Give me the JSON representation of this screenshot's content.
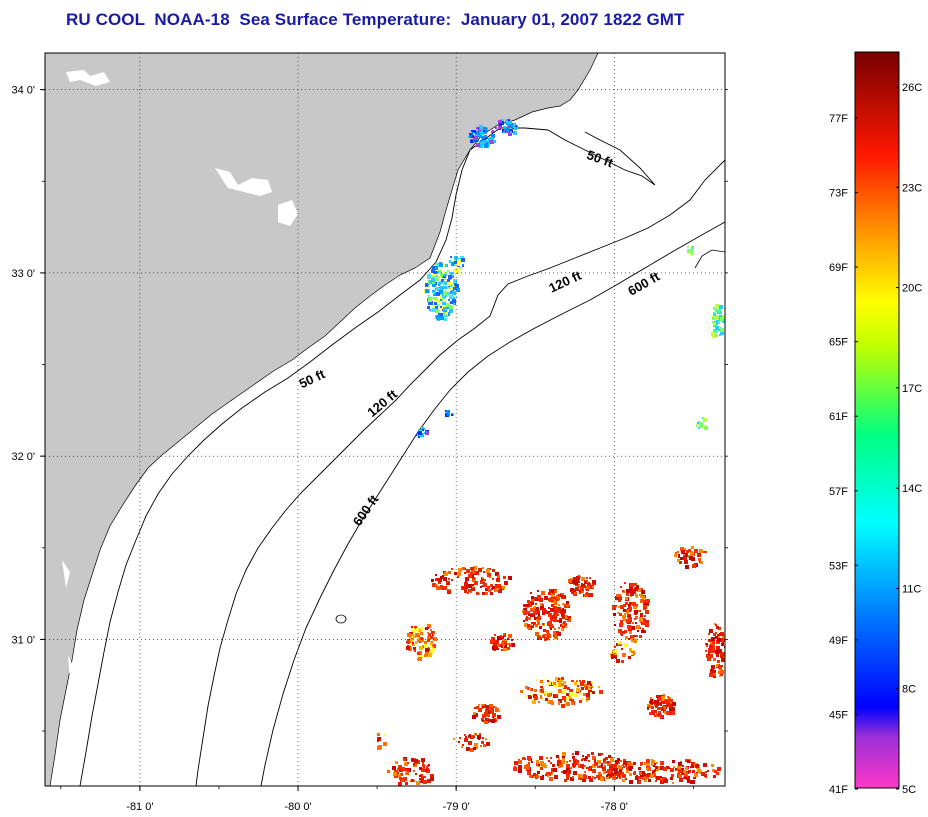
{
  "title": "RU COOL  NOAA-18  Sea Surface Temperature:  January 01, 2007 1822 GMT",
  "colors": {
    "land": "#c8c8c8",
    "water": "#ffffff",
    "title": "#1a1aa8"
  },
  "map": {
    "lon_range": [
      -81.6,
      -77.3
    ],
    "lat_range": [
      30.2,
      34.2
    ],
    "lon_ticks": [
      {
        "value": -81,
        "label": "-81 0'"
      },
      {
        "value": -80,
        "label": "-80 0'"
      },
      {
        "value": -79,
        "label": "-79 0'"
      },
      {
        "value": -78,
        "label": "-78 0'"
      }
    ],
    "lat_ticks": [
      {
        "value": 34,
        "label": "34 0'"
      },
      {
        "value": 33,
        "label": "33 0'"
      },
      {
        "value": 32,
        "label": "32 0'"
      },
      {
        "value": 31,
        "label": "31 0'"
      }
    ],
    "contour_labels": [
      {
        "text": "50 ft",
        "lon": -78.1,
        "lat": 33.6,
        "angle": 20
      },
      {
        "text": "120 ft",
        "lon": -78.3,
        "lat": 32.93,
        "angle": -25
      },
      {
        "text": "600 ft",
        "lon": -77.8,
        "lat": 32.92,
        "angle": -30
      },
      {
        "text": "50 ft",
        "lon": -79.9,
        "lat": 32.4,
        "angle": -25
      },
      {
        "text": "120 ft",
        "lon": -79.45,
        "lat": 32.27,
        "angle": -40
      },
      {
        "text": "600 ft",
        "lon": -79.55,
        "lat": 31.69,
        "angle": -55
      }
    ]
  },
  "colorbar": {
    "fahrenheit_labels": [
      "77F",
      "73F",
      "69F",
      "65F",
      "61F",
      "57F",
      "53F",
      "49F",
      "45F",
      "41F"
    ],
    "celsius_labels": [
      "26C",
      "23C",
      "20C",
      "17C",
      "14C",
      "11C",
      "8C",
      "5C"
    ]
  }
}
